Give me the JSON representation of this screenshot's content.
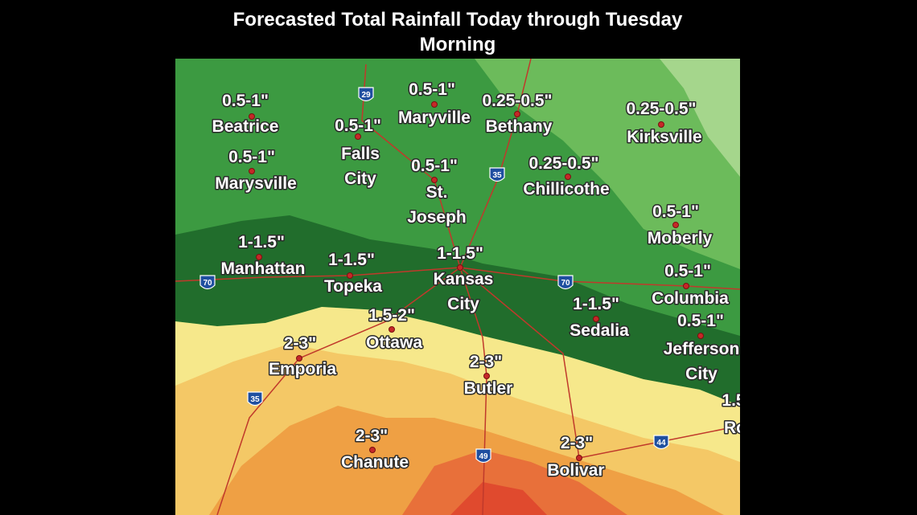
{
  "title": [
    "Forecasted Total Rainfall Today through Tuesday",
    "Morning"
  ],
  "labels": [
    {
      "amount": "0.5-1\"",
      "name": [
        "Beatrice"
      ]
    },
    {
      "amount": "0.5-1\"",
      "name": [
        "Marysville"
      ]
    },
    {
      "amount": "0.5-1\"",
      "name": [
        "Falls",
        "City"
      ]
    },
    {
      "amount": "0.5-1\"",
      "name": [
        "Maryville"
      ]
    },
    {
      "amount": "0.25-0.5\"",
      "name": [
        "Bethany"
      ]
    },
    {
      "amount": "0.25-0.5\"",
      "name": [
        "Kirksville"
      ]
    },
    {
      "amount": "0.25-0.5\"",
      "name": [
        "Chillicothe"
      ]
    },
    {
      "amount": "0.5-1\"",
      "name": [
        "St.",
        "Joseph"
      ]
    },
    {
      "amount": "0.5-1\"",
      "name": [
        "Moberly"
      ]
    },
    {
      "amount": "1-1.5\"",
      "name": [
        "Manhattan"
      ]
    },
    {
      "amount": "1-1.5\"",
      "name": [
        "Topeka"
      ]
    },
    {
      "amount": "1-1.5\"",
      "name": [
        "Kansas",
        "City"
      ]
    },
    {
      "amount": "0.5-1\"",
      "name": [
        "Columbia"
      ]
    },
    {
      "amount": "1-1.5\"",
      "name": [
        "Sedalia"
      ]
    },
    {
      "amount": "0.5-1\"",
      "name": [
        "Jefferson",
        "City"
      ]
    },
    {
      "amount": "1.5-2\"",
      "name": [
        "Ottawa"
      ]
    },
    {
      "amount": "2-3\"",
      "name": [
        "Emporia"
      ]
    },
    {
      "amount": "2-3\"",
      "name": [
        "Butler"
      ]
    },
    {
      "amount": "2-3\"",
      "name": [
        "Chanute"
      ]
    },
    {
      "amount": "2-3\"",
      "name": [
        "Bolivar"
      ]
    },
    {
      "amount": "1.5",
      "name": [
        "Ro"
      ]
    }
  ],
  "interstates": [
    "29",
    "35",
    "70",
    "70",
    "35",
    "49",
    "44"
  ]
}
